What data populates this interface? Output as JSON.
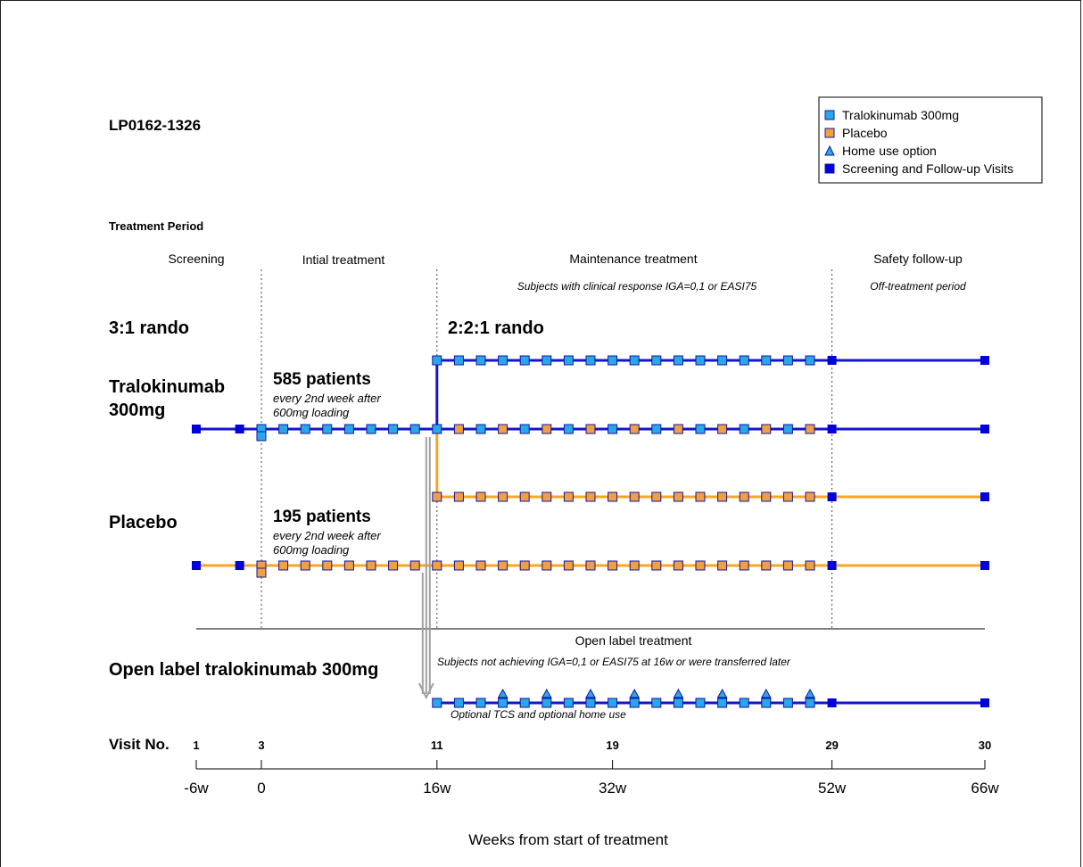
{
  "study_id": "LP0162-1326",
  "section_title": "Treatment Period",
  "phases": {
    "screening": "Screening",
    "initial": "Intial treatment",
    "maintenance": "Maintenance treatment",
    "maintenance_note": "Subjects with clinical response IGA=0,1 or EASI75",
    "followup": "Safety follow-up",
    "followup_note": "Off-treatment period"
  },
  "rando_initial": "3:1 rando",
  "rando_maintenance": "2:2:1 rando",
  "arms": {
    "tralokinumab_line1": "Tralokinumab",
    "tralokinumab_line2": "300mg",
    "tralokinumab_patients": "585 patients",
    "tralokinumab_note1": "every 2nd week after",
    "tralokinumab_note2": "600mg loading",
    "placebo": "Placebo",
    "placebo_patients": "195 patients",
    "placebo_note1": "every 2nd week after",
    "placebo_note2": "600mg loading",
    "open_label": "Open label tralokinumab 300mg"
  },
  "open_label": {
    "title": "Open label treatment",
    "note": "Subjects not achieving IGA=0,1 or EASI75 at 16w or were transferred later",
    "option_note": "Optional TCS and optional home use"
  },
  "legend": [
    {
      "label": "Tralokinumab 300mg",
      "shape": "square",
      "color": "#29a8e8"
    },
    {
      "label": "Placebo",
      "shape": "square",
      "color": "#f0a040"
    },
    {
      "label": "Home use option",
      "shape": "triangle",
      "color": "#29a8e8"
    },
    {
      "label": "Screening and Follow-up Visits",
      "shape": "square",
      "color": "#0000dd"
    }
  ],
  "colors": {
    "tralokinumab_line": "#1515c8",
    "placebo_line": "#f5a623",
    "tralokinumab_marker": "#29a8e8",
    "placebo_marker": "#f0a040",
    "visit_marker": "#0000dd",
    "arrow": "#a0a0a0"
  },
  "visit_axis": {
    "label": "Visit No.",
    "visits": [
      {
        "no": "1",
        "week": -6
      },
      {
        "no": "3",
        "week": 0
      },
      {
        "no": "11",
        "week": 16
      },
      {
        "no": "19",
        "week": 32
      },
      {
        "no": "29",
        "week": 52
      },
      {
        "no": "30",
        "week": 66
      }
    ]
  },
  "week_axis": {
    "title": "Weeks from start of treatment",
    "ticks": [
      {
        "label": "-6w",
        "week": -6
      },
      {
        "label": "0",
        "week": 0
      },
      {
        "label": "16w",
        "week": 16
      },
      {
        "label": "32w",
        "week": 32
      },
      {
        "label": "52w",
        "week": 52
      },
      {
        "label": "66w",
        "week": 66
      }
    ]
  },
  "schedule": {
    "screening_visits_weeks": [
      -6,
      -2
    ],
    "loading_week": 0,
    "initial_dose_weeks": [
      2,
      4,
      6,
      8,
      10,
      12,
      14
    ],
    "maintenance_dose_weeks": [
      16,
      18,
      20,
      22,
      24,
      26,
      28,
      30,
      32,
      34,
      36,
      38,
      40,
      42,
      44,
      46,
      48,
      50
    ],
    "home_use_weeks": [
      22,
      26,
      30,
      34,
      38,
      42,
      46,
      50
    ],
    "followup_visit_weeks": [
      52,
      66
    ]
  }
}
